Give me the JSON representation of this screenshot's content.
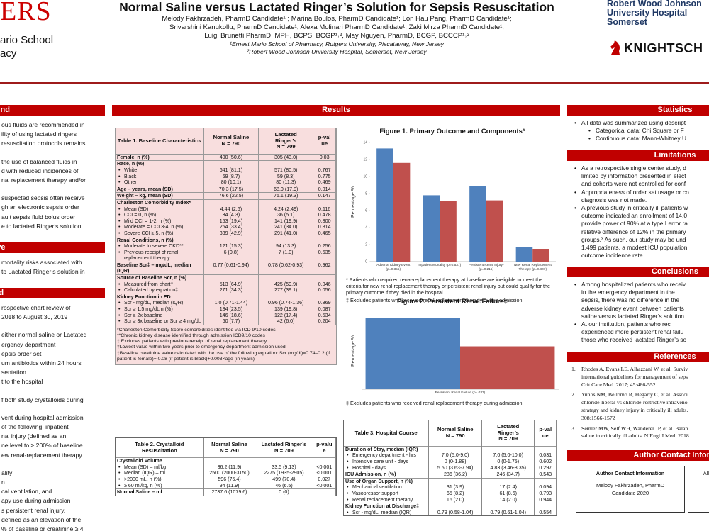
{
  "header": {
    "logo_left": {
      "mark": "ERS",
      "lines": [
        "ario School",
        "acy"
      ]
    },
    "title": "Normal Saline versus Lactated Ringer’s Solution for Sepsis Resuscitation",
    "authors": [
      "Melody Fakhrzadeh, PharmD Candidate¹ ; Marina Boulos, PharmD Candidate¹; Lon Hau Pang, PharmD Candidate¹;",
      "Srivarshini Kanukollu, PharmD Candidate¹; Alexa Molinari PharmD Candidate¹, Zaki Mirza PharmD Candidate¹,",
      "Luigi Brunetti PharmD, MPH, BCPS, BCGP¹˒², May Nguyen, PharmD, BCGP, BCCCP¹˒²"
    ],
    "affiliations": [
      "¹Ernest Mario School of Pharmacy, Rutgers University, Piscataway, New Jersey",
      "²Robert Wood Johnson University Hospital, Somerset, New Jersey"
    ],
    "logo_right": {
      "lines": [
        "Robert Wood Johnson",
        "University Hospital",
        "Somerset"
      ],
      "brand": "KNIGHTSCH"
    }
  },
  "left_column": [
    {
      "header": "ground",
      "paragraphs": [
        [
          "ous fluids are recommended in",
          "ility of using lactated ringers",
          "resuscitation protocols remains"
        ],
        [
          "the use of balanced fluids in",
          "d with reduced incidences of",
          "nal replacement therapy and/or"
        ],
        [
          "suspected sepsis often receive",
          "gh an electronic sepsis order",
          "ault sepsis fluid bolus order",
          "e to lactated Ringer's solution."
        ]
      ]
    },
    {
      "header": "ctive",
      "paragraphs": [
        [
          "mortality risks associated with",
          "to Lactated Ringer’s solution in"
        ]
      ]
    },
    {
      "header": "hod",
      "paragraphs": [
        [
          "rospective chart review of",
          "2018 to August 30, 2019"
        ],
        [
          "either normal saline or Lactated",
          "ergency department",
          "epsis order set",
          "um antibiotics within 24 hours",
          "sentation",
          "t to the hospital"
        ],
        [
          "f both study crystalloids during"
        ],
        [
          "vent during hospital admission",
          "of the following: inpatient",
          "nal injury (defined as an",
          "ne level to ≥ 200% of baseline",
          "ew renal-replacement therapy"
        ],
        [
          "ality",
          "n",
          "cal ventilation, and",
          "apy use during admission",
          "s persistent renal injury,",
          "defined as an elevation of the",
          "% of baseline or creatinine ≥ 4"
        ]
      ]
    }
  ],
  "results": {
    "header": "Results",
    "table1": {
      "title": "Table 1. Baseline Characteristics",
      "columns": [
        [
          "Normal Saline",
          "N = 790"
        ],
        [
          "Lactated",
          "Ringer’s",
          "N = 709"
        ],
        [
          "p-val",
          "ue"
        ]
      ],
      "rows": [
        {
          "label": "Female, n (%)",
          "ns": "400 (50.6)",
          "lr": "305 (43.0)",
          "p": "0.03"
        },
        {
          "label": "Race, n (%)"
        },
        {
          "label": "White",
          "bullet": true,
          "ns": "641 (81.1)",
          "lr": "571 (80.5)",
          "p": "0.767"
        },
        {
          "label": "Black",
          "bullet": true,
          "ns": "69 (8.7)",
          "lr": "59 (8.3)",
          "p": "0.775"
        },
        {
          "label": "Other",
          "bullet": true,
          "ns": "80 (10.1)",
          "lr": "80 (11.3)",
          "p": "0.469"
        },
        {
          "label": "Age – years, mean (SD)",
          "ns": "70.3 (17.5)",
          "lr": "68.0 (17.9)",
          "p": "0.014"
        },
        {
          "label": "Weight – kg, mean (SD)",
          "ns": "76.6 (22.5)",
          "lr": "75.1 (19.3)",
          "p": "0.147"
        },
        {
          "label": "Charleston Comorbidity Index*"
        },
        {
          "label": "Mean (SD)",
          "bullet": true,
          "ns": "4.44 (2.6)",
          "lr": "4.24 (2.49)",
          "p": "0.116"
        },
        {
          "label": "CCI = 0, n (%)",
          "bullet": true,
          "ns": "34 (4.3)",
          "lr": "36 (5.1)",
          "p": "0.478"
        },
        {
          "label": "Mild CCI = 1-2, n (%)",
          "bullet": true,
          "ns": "153 (19.4)",
          "lr": "141 (19.9)",
          "p": "0.800"
        },
        {
          "label": "Moderate = CCI 3-4, n (%)",
          "bullet": true,
          "ns": "264 (33.4)",
          "lr": "241 (34.0)",
          "p": "0.814"
        },
        {
          "label": "Severe CCI ≥ 5, n (%)",
          "bullet": true,
          "ns": "339 (42.9)",
          "lr": "291 (41.0)",
          "p": "0.465"
        },
        {
          "label": "Renal Conditions, n (%)"
        },
        {
          "label": "Moderate to severe CKD**",
          "bullet": true,
          "ns": "121 (15.3)",
          "lr": "94 (13.3)",
          "p": "0.256"
        },
        {
          "label": "Previous receipt of renal replacement therapy",
          "bullet": true,
          "ns": "6 (0.8)",
          "lr": "7 (1.0)",
          "p": "0.635"
        },
        {
          "label": "Baseline Scr‡ – mg/dL, median (IQR)",
          "ns": "0.77 (0.61-0.94)",
          "lr": "0.78 (0.62-0.93)",
          "p": "0.962"
        },
        {
          "label": "Source of Baseline Scr, n (%)"
        },
        {
          "label": "Measured from chart†",
          "bullet": true,
          "ns": "513 (64.9)",
          "lr": "425 (59.9)",
          "p": "0.046"
        },
        {
          "label": "Calculated by equation‡",
          "bullet": true,
          "ns": "271 (34.3)",
          "lr": "277 (39.1)",
          "p": "0.056"
        },
        {
          "label": "Kidney Function in ED"
        },
        {
          "label": "Scr - mg/dL, median (IQR)",
          "bullet": true,
          "ns": "1.0 (0.71-1.44)",
          "lr": "0.96 (0.74-1.36)",
          "p": "0.869"
        },
        {
          "label": "Scr ≥ 1.5 mg/dL n (%)",
          "bullet": true,
          "ns": "184 (23.5)",
          "lr": "139 (19.8)",
          "p": "0.087"
        },
        {
          "label": "Scr ≥ 2x baseline",
          "bullet": true,
          "ns": "146 (18.6)",
          "lr": "122 (17.4)",
          "p": "0.534"
        },
        {
          "label": "Scr ≥ 3x baseline or Scr ≥ 4 mg/dL",
          "bullet": true,
          "ns": "60 (7.7)",
          "lr": "42 (6.0)",
          "p": "0.204"
        }
      ],
      "footnotes": [
        "*Charleston Comorbidity Score comorbidities identified via ICD 9/10 codes",
        "**Chronic kidney disease identified through admission ICD9/10 codes",
        "‡ Excludes patients with previous receipt of renal replacement therapy",
        "†Lowest value within two years prior to emergency department admission used",
        "‡Baseline creatinine value calculated with the use of the following equation: Scr (mg/dl)=0.74–0.2 (if patient is female)+ 0.08 (if patient is black)+0.003×age (in years)"
      ]
    },
    "figure1": {
      "type": "bar",
      "title": "Figure 1. Primary Outcome and Components*",
      "ylabel": "Percentage %",
      "categories": [
        "Adverse Kidney Event (p=0.355)",
        "Inpatient Mortality (p=0.537)",
        "Persistent Renal Injury* (p=0.215)",
        "New Renal Replacement Therapy (p=0.807)"
      ],
      "series": [
        {
          "color": "#4f81bd",
          "values": [
            13.3,
            7.8,
            8.9,
            1.7
          ]
        },
        {
          "color": "#c0504d",
          "values": [
            11.6,
            7.1,
            7.2,
            1.5
          ]
        }
      ],
      "ylim": [
        0,
        14
      ],
      "yticks": [
        0,
        2,
        4,
        6,
        8,
        10,
        12,
        14
      ],
      "notes": [
        "* Patients who required renal-replacement therapy at baseline are ineligible to meet the criteria for new renal-replacement therapy or persistent renal injury but could qualify for the primary outcome if they died in the hospital.",
        "‡ Excludes patients who received renal replacement therapy during admission"
      ]
    },
    "figure2": {
      "type": "bar",
      "title": "Figure 2. Persistent Renal Failure‡",
      "ylabel": "Percentage %",
      "categories": [
        "Persistent Renal Failure (p=.037)"
      ],
      "series": [
        {
          "color": "#4f81bd",
          "values": [
            9.3
          ]
        },
        {
          "color": "#c0504d",
          "values": [
            5.6
          ]
        }
      ],
      "ylim": [
        0,
        10
      ],
      "notes": [
        "‡ Excludes patients who received renal replacement therapy during admission"
      ]
    },
    "table3": {
      "title": "Table 3. Hospital Course",
      "columns": [
        [
          "Normal Saline",
          "N = 790"
        ],
        [
          "Lactated",
          "Ringer’s",
          "N = 709"
        ],
        [
          "p-val",
          "ue"
        ]
      ],
      "rows": [
        {
          "label": "Duration of Stay, median (IQR)"
        },
        {
          "label": "Emergency department - hrs",
          "bullet": true,
          "ns": "7.0 (5.0-9.0)",
          "lr": "7.0 (5.0-10.0)",
          "p": "0.031"
        },
        {
          "label": "Intensive care unit - days",
          "bullet": true,
          "ns": "0 (0-1.88)",
          "lr": "0 (0-1.75)",
          "p": "0.602"
        },
        {
          "label": "Hospital - days",
          "bullet": true,
          "ns": "5.50 (3.63-7.94)",
          "lr": "4.83 (3.46-8.35)",
          "p": "0.297"
        },
        {
          "label": "ICU Admission, n (%)",
          "ns": "286 (36.2)",
          "lr": "246 (34.7)",
          "p": "0.543"
        },
        {
          "label": "Use of Organ Support, n (%)"
        },
        {
          "label": "Mechanical ventilation",
          "bullet": true,
          "ns": "31 (3.9)",
          "lr": "17 (2.4)",
          "p": "0.094"
        },
        {
          "label": "Vasopressor support",
          "bullet": true,
          "ns": "65 (8.2)",
          "lr": "61 (8.6)",
          "p": "0.793"
        },
        {
          "label": "Renal replacement therapy",
          "bullet": true,
          "ns": "16 (2.0)",
          "lr": "14 (2.0)",
          "p": "0.944"
        },
        {
          "label": "Kidney Function at Discharge‡"
        },
        {
          "label": "Scr - mg/dL, median (IQR)",
          "bullet": true,
          "ns": "0.79 (0.58-1.04)",
          "lr": "0.79 (0.61-1.04)",
          "p": "0.554"
        }
      ]
    },
    "table2": {
      "title": "Table 2. Crystalloid Resuscitation",
      "columns": [
        [
          "Normal Saline",
          "N = 790"
        ],
        [
          "Lactated Ringer’s",
          "N = 709"
        ],
        [
          "p-valu",
          "e"
        ]
      ],
      "rows": [
        {
          "label": "Crystalloid Volume"
        },
        {
          "label": "Mean (SD) – ml/kg",
          "bullet": true,
          "ns": "36.2 (11.9)",
          "lr": "33.5 (9.13)",
          "p": "<0.001"
        },
        {
          "label": "Median (IQR) – ml",
          "bullet": true,
          "ns": "2500 (2000-3150)",
          "lr": "2275 (1935-2905)",
          "p": "<0.001"
        },
        {
          "label": ">2000 mL, n (%)",
          "bullet": true,
          "ns": "596 (75.4)",
          "lr": "499 (70.4)",
          "p": "0.027"
        },
        {
          "label": "≥ 60 ml/kg, n (%)",
          "bullet": true,
          "ns": "94 (11.9)",
          "lr": "46 (6.5)",
          "p": "<0.001"
        },
        {
          "label": "Normal Saline – ml",
          "ns": "2737.6 (1079.6)",
          "lr": "0 (0)"
        }
      ]
    }
  },
  "right_column": {
    "statistics": {
      "header": "Statistics",
      "items": [
        {
          "lines": [
            "All data was summarized using descript"
          ]
        },
        {
          "lines": [
            "Categorical data: Chi Square or F"
          ],
          "sub": true
        },
        {
          "lines": [
            "Continuous data: Mann-Whitney U"
          ],
          "sub": true
        }
      ]
    },
    "limitations": {
      "header": "Limitations",
      "items": [
        {
          "lines": [
            "As a retrospective single center study, d",
            "limited by information presented in elect",
            "and cohorts were not controlled for conf"
          ]
        },
        {
          "lines": [
            "Appropriateness of order set usage or co",
            "diagnosis was not made."
          ]
        },
        {
          "lines": [
            "A previous study in critically ill patients w",
            "outcome indicated an enrollment of 14,0",
            "provide power of 90% at a type I error ra",
            "relative difference of 12% in the primary",
            "groups.³ As such, our study may be und",
            "1,499 patients, a modest ICU population",
            "outcome incidence rate."
          ]
        }
      ]
    },
    "conclusions": {
      "header": "Conclusions",
      "items": [
        {
          "lines": [
            "Among hospitalized patients who receiv",
            "in the emergency department in the",
            "sepsis, there was no difference in the",
            "adverse kidney event between patients",
            "saline versus lactated Ringer’s solution."
          ]
        },
        {
          "lines": [
            "At our institution, patients who rec",
            "experienced more persistent renal failu",
            "those who received lactated Ringer’s so"
          ]
        }
      ]
    },
    "references": {
      "header": "References",
      "items": [
        {
          "number": "1.",
          "lines": [
            "Rhodes A, Evans LE, Alhazzani W, et al. Surviv",
            "international guidelines for management of seps",
            "Crit Care Med. 2017; 45:486-552"
          ]
        },
        {
          "number": "2.",
          "lines": [
            "Yunos NM, Bellomo R, Hegarty C, et al. Associ",
            "chloride-liberal vs chloride-restrictive intraveno",
            "strategy and kidney injury in critically ill adults.",
            "308:1566-1572"
          ]
        },
        {
          "number": "3.",
          "lines": [
            "Semler MW, Self WH, Wanderer JP, et al. Balan",
            "saline in critically ill adults. N Engl J Med. 2018"
          ]
        }
      ]
    },
    "contact": {
      "header": "Author Contact Inform",
      "boxes": [
        {
          "title": "Author Contact Information",
          "lines": [
            "Melody Fakhrzadeh, PharmD",
            "Candidate 2020"
          ]
        },
        {
          "lines": [
            "All a"
          ]
        }
      ]
    }
  }
}
